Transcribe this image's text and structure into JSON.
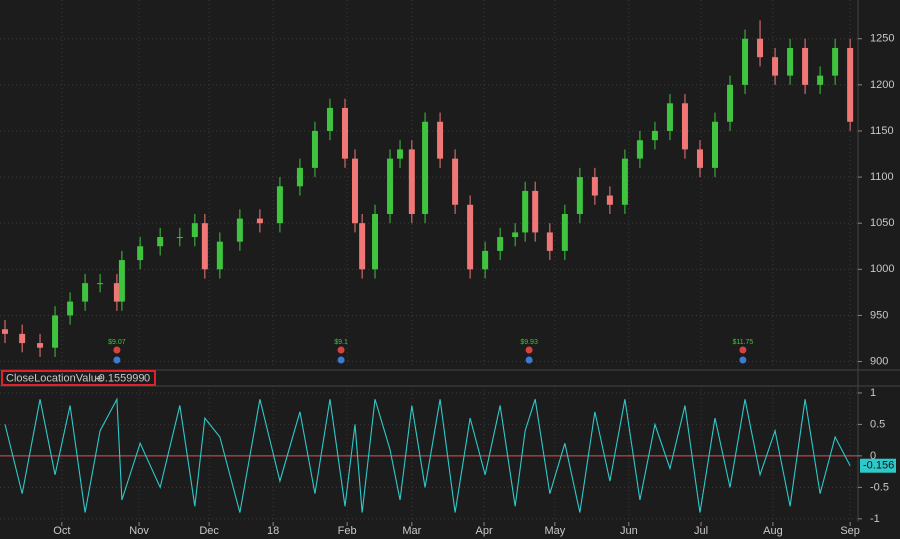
{
  "chart_data": [
    {
      "type": "candlestick",
      "x": [
        1.4,
        6.2,
        11.2,
        15.4,
        19.6,
        23.8,
        28.0,
        32.7,
        34.1,
        39.2,
        44.8,
        50.3,
        54.5,
        57.3,
        61.5,
        67.1,
        72.7,
        78.3,
        83.9,
        88.1,
        92.3,
        96.5,
        99.3,
        101.3,
        104.9,
        109.1,
        111.9,
        115.2,
        118.9,
        123.1,
        127.3,
        131.5,
        135.7,
        139.9,
        144.1,
        146.9,
        149.7,
        153.8,
        158.0,
        162.2,
        166.4,
        170.6,
        174.8,
        179.0,
        183.2,
        187.4,
        191.6,
        195.8,
        200.0,
        204.2,
        208.4,
        212.6,
        216.8,
        221.0,
        225.2,
        229.4,
        233.6,
        237.8
      ],
      "open": [
        935,
        930,
        920,
        915,
        950,
        965,
        985,
        985,
        965,
        1010,
        1025,
        1035,
        1035,
        1050,
        1000,
        1030,
        1055,
        1050,
        1090,
        1110,
        1150,
        1175,
        1120,
        1050,
        1000,
        1060,
        1120,
        1130,
        1060,
        1160,
        1120,
        1070,
        1000,
        1020,
        1035,
        1040,
        1085,
        1040,
        1020,
        1060,
        1100,
        1080,
        1070,
        1120,
        1140,
        1150,
        1180,
        1130,
        1110,
        1160,
        1200,
        1250,
        1230,
        1210,
        1240,
        1200,
        1210,
        1240
      ],
      "high": [
        945,
        940,
        930,
        960,
        975,
        995,
        995,
        995,
        1020,
        1035,
        1045,
        1045,
        1060,
        1060,
        1040,
        1065,
        1065,
        1100,
        1120,
        1160,
        1185,
        1185,
        1130,
        1060,
        1070,
        1130,
        1140,
        1140,
        1170,
        1170,
        1130,
        1080,
        1030,
        1045,
        1050,
        1095,
        1095,
        1050,
        1070,
        1110,
        1110,
        1090,
        1130,
        1150,
        1160,
        1190,
        1190,
        1140,
        1170,
        1210,
        1260,
        1270,
        1240,
        1250,
        1250,
        1220,
        1250,
        1250
      ],
      "low": [
        920,
        910,
        905,
        905,
        940,
        955,
        975,
        955,
        955,
        1000,
        1015,
        1025,
        1025,
        990,
        990,
        1020,
        1040,
        1040,
        1080,
        1100,
        1140,
        1110,
        1040,
        990,
        990,
        1050,
        1110,
        1050,
        1050,
        1110,
        1060,
        990,
        990,
        1010,
        1025,
        1030,
        1030,
        1010,
        1010,
        1050,
        1070,
        1060,
        1060,
        1110,
        1130,
        1140,
        1120,
        1100,
        1100,
        1150,
        1190,
        1220,
        1200,
        1200,
        1190,
        1190,
        1200,
        1150
      ],
      "close": [
        930,
        920,
        915,
        950,
        965,
        985,
        985,
        965,
        1010,
        1025,
        1035,
        1035,
        1050,
        1000,
        1030,
        1055,
        1050,
        1090,
        1110,
        1150,
        1175,
        1120,
        1050,
        1000,
        1060,
        1120,
        1130,
        1060,
        1160,
        1120,
        1070,
        1000,
        1020,
        1035,
        1040,
        1085,
        1040,
        1020,
        1060,
        1100,
        1080,
        1070,
        1120,
        1140,
        1150,
        1180,
        1130,
        1110,
        1160,
        1200,
        1250,
        1230,
        1210,
        1240,
        1200,
        1210,
        1240,
        1160
      ],
      "up_color": "#3ec43e",
      "down_color": "#f17777",
      "xlim": [
        0,
        240
      ],
      "xticks": [
        {
          "value": 17.3,
          "label": "Oct"
        },
        {
          "value": 38.9,
          "label": "Nov"
        },
        {
          "value": 58.5,
          "label": "Dec"
        },
        {
          "value": 76.4,
          "label": "18"
        },
        {
          "value": 97.1,
          "label": "Feb"
        },
        {
          "value": 115.2,
          "label": "Mar"
        },
        {
          "value": 135.4,
          "label": "Apr"
        },
        {
          "value": 155.2,
          "label": "May"
        },
        {
          "value": 175.9,
          "label": "Jun"
        },
        {
          "value": 196.1,
          "label": "Jul"
        },
        {
          "value": 216.2,
          "label": "Aug"
        },
        {
          "value": 237.8,
          "label": "Sep"
        }
      ],
      "ylim": [
        893,
        1292
      ],
      "yticks": [
        900,
        950,
        1000,
        1050,
        1100,
        1150,
        1200,
        1250
      ],
      "grid": true,
      "dividends": [
        {
          "x": 32.7,
          "label": "$9.07"
        },
        {
          "x": 95.4,
          "label": "$9.1"
        },
        {
          "x": 148.0,
          "label": "$9.93"
        },
        {
          "x": 207.8,
          "label": "$11.75"
        }
      ]
    },
    {
      "type": "line",
      "x": [
        1.4,
        6.2,
        11.2,
        15.4,
        19.6,
        23.8,
        28.0,
        32.7,
        34.1,
        39.2,
        44.8,
        50.3,
        54.5,
        57.3,
        61.5,
        67.1,
        72.7,
        78.3,
        83.9,
        88.1,
        92.3,
        96.5,
        99.3,
        101.3,
        104.9,
        109.1,
        111.9,
        115.2,
        118.9,
        123.1,
        127.3,
        131.5,
        135.7,
        139.9,
        144.1,
        146.9,
        149.7,
        153.8,
        158.0,
        162.2,
        166.4,
        170.6,
        174.8,
        179.0,
        183.2,
        187.4,
        191.6,
        195.8,
        200.0,
        204.2,
        208.4,
        212.6,
        216.8,
        221.0,
        225.2,
        229.4,
        233.6,
        237.8
      ],
      "series": [
        {
          "name": "CloseLocationValue",
          "color": "#2ec9c9",
          "values": [
            0.5,
            -0.6,
            0.9,
            -0.3,
            0.8,
            -0.9,
            0.4,
            0.9,
            -0.7,
            0.2,
            -0.5,
            0.8,
            -0.8,
            0.6,
            0.3,
            -0.9,
            0.9,
            -0.4,
            0.7,
            -0.6,
            0.9,
            -0.8,
            0.5,
            -0.9,
            0.9,
            0.1,
            -0.7,
            0.8,
            -0.5,
            0.9,
            -0.9,
            0.6,
            -0.3,
            0.8,
            -0.8,
            0.4,
            0.9,
            -0.6,
            0.2,
            -0.9,
            0.7,
            -0.4,
            0.9,
            -0.7,
            0.5,
            -0.2,
            0.8,
            -0.9,
            0.6,
            -0.5,
            0.9,
            -0.3,
            0.4,
            -0.8,
            0.9,
            -0.6,
            0.3,
            -0.155999
          ]
        }
      ],
      "last_label": "-0.156",
      "zero_line": 0,
      "zero_color": "#e05050",
      "xlim": [
        0,
        240
      ],
      "ylim": [
        -1.05,
        1.11
      ],
      "yticks": [
        1,
        0.5,
        0,
        -0.5,
        -1
      ],
      "grid": true
    }
  ]
}
